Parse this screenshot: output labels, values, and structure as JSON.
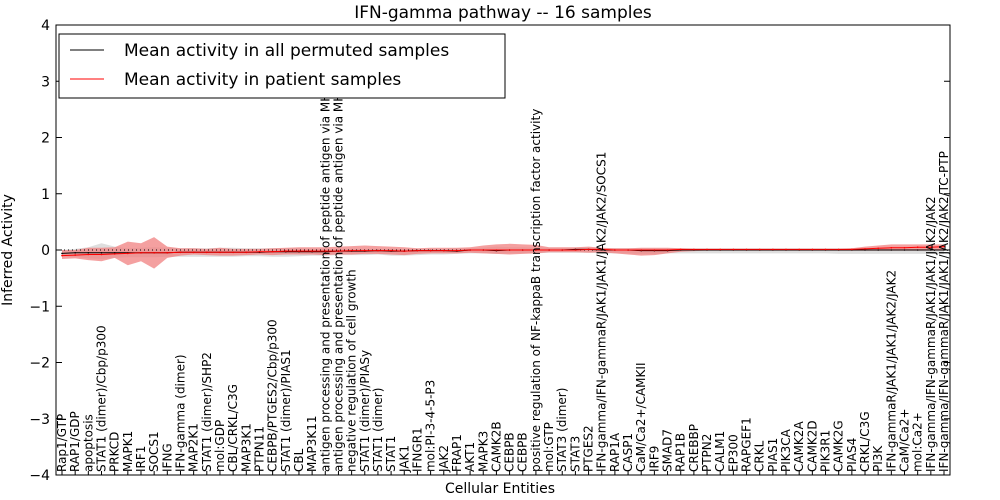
{
  "chart_data": {
    "type": "line",
    "title": "IFN-gamma pathway -- 16 samples",
    "xlabel": "Cellular Entities",
    "ylabel": "Inferred Activity",
    "ylim": [
      -4,
      4
    ],
    "yticks": [
      -4,
      -3,
      -2,
      -1,
      0,
      1,
      2,
      3,
      4
    ],
    "ytick_labels": [
      "−4",
      "−3",
      "−2",
      "−1",
      "0",
      "1",
      "2",
      "3",
      "4"
    ],
    "reference_line": 0,
    "categories": [
      "Rap1/GTP",
      "RAP1/GDP",
      "apoptosis",
      "STAT1 (dimer)/Cbp/p300",
      "PRKCD",
      "MAPK1",
      "IRF1",
      "SOCS1",
      "IFNG",
      "IFN-gamma (dimer)",
      "MAP2K1",
      "STAT1 (dimer)/SHP2",
      "mol:GDP",
      "CBL/CRKL/C3G",
      "MAP3K1",
      "PTPN11",
      "CEBPB/PTGES2/Cbp/p300",
      "STAT1 (dimer)/PIAS1",
      "CBL",
      "MAP3K11",
      "antigen processing and presentation of peptide antigen via MHC class I",
      "antigen processing and presentation of peptide antigen via MHC class II",
      "negative regulation of cell growth",
      "STAT1 (dimer)/PIASy",
      "STAT1 (dimer)",
      "STAT1",
      "JAK1",
      "IFNGR1",
      "mol:PI-3-4-5-P3",
      "JAK2",
      "FRAP1",
      "AKT1",
      "MAPK3",
      "CAMK2B",
      "CEBPB",
      "CEBPB",
      "positive regulation of NF-kappaB transcription factor activity",
      "mol:GTP",
      "STAT3 (dimer)",
      "STAT3",
      "PTGES2",
      "IFN-gamma/IFN-gammaR/JAK1/JAK1/JAK2/JAK2/SOCS1",
      "RAP1A",
      "CASP1",
      "CaM/Ca2+/CAMKII",
      "IRF9",
      "SMAD7",
      "RAP1B",
      "CREBBP",
      "PTPN2",
      "CALM1",
      "EP300",
      "RAPGEF1",
      "CRKL",
      "PIAS1",
      "PIK3CA",
      "CAMK2A",
      "CAMK2D",
      "PIK3R1",
      "CAMK2G",
      "PIAS4",
      "CRKL/C3G",
      "PI3K",
      "IFN-gammaR/JAK1/JAK1/JAK2/JAK2",
      "CaM/Ca2+",
      "mol:Ca2+",
      "IFN-gamma/IFN-gammaR/JAK1/JAK1/JAK2/JAK2",
      "IFN-gamma/IFN-gammaR/JAK1/JAK1/JAK2/JAK2/TC-PTP"
    ],
    "series": [
      {
        "name": "Mean activity in all permuted samples",
        "color": "#000000",
        "band_color": "#c8c8c8",
        "values": [
          -0.06,
          -0.05,
          -0.05,
          -0.05,
          -0.05,
          -0.05,
          -0.05,
          -0.05,
          -0.05,
          -0.04,
          -0.04,
          -0.04,
          -0.04,
          -0.04,
          -0.04,
          -0.04,
          -0.03,
          -0.03,
          -0.03,
          -0.03,
          -0.03,
          -0.02,
          -0.02,
          -0.02,
          -0.01,
          -0.02,
          -0.02,
          -0.01,
          -0.01,
          -0.01,
          -0.02,
          0.0,
          0.0,
          -0.01,
          0.0,
          0.0,
          0.0,
          0.0,
          0.0,
          0.01,
          0.01,
          0.0,
          0.0,
          0.0,
          -0.01,
          -0.01,
          -0.01,
          0.0,
          0.0,
          0.0,
          0.0,
          0.0,
          0.0,
          0.0,
          0.0,
          0.0,
          0.0,
          0.0,
          0.0,
          0.0,
          0.0,
          0.0,
          0.0,
          0.0,
          0.0,
          0.0,
          0.0,
          0.0
        ],
        "band_upper": [
          0.0,
          0.02,
          0.05,
          0.12,
          0.06,
          0.03,
          0.04,
          0.05,
          0.04,
          0.03,
          0.03,
          0.03,
          0.04,
          0.04,
          0.03,
          0.03,
          0.03,
          0.03,
          0.03,
          0.02,
          0.02,
          0.02,
          0.02,
          0.02,
          0.02,
          0.02,
          0.02,
          0.02,
          0.02,
          0.02,
          0.03,
          0.03,
          0.04,
          0.06,
          0.05,
          0.05,
          0.04,
          0.04,
          0.04,
          0.04,
          0.04,
          0.03,
          0.03,
          0.03,
          0.03,
          0.03,
          0.03,
          0.03,
          0.03,
          0.03,
          0.03,
          0.03,
          0.03,
          0.03,
          0.03,
          0.03,
          0.03,
          0.03,
          0.03,
          0.03,
          0.03,
          0.03,
          0.03,
          0.02,
          0.02,
          0.02,
          0.02,
          0.02
        ],
        "band_lower": [
          -0.12,
          -0.12,
          -0.15,
          -0.16,
          -0.14,
          -0.13,
          -0.13,
          -0.13,
          -0.12,
          -0.12,
          -0.12,
          -0.12,
          -0.12,
          -0.12,
          -0.11,
          -0.11,
          -0.12,
          -0.12,
          -0.11,
          -0.1,
          -0.1,
          -0.09,
          -0.09,
          -0.09,
          -0.08,
          -0.1,
          -0.1,
          -0.09,
          -0.08,
          -0.08,
          -0.07,
          -0.06,
          -0.06,
          -0.07,
          -0.06,
          -0.06,
          -0.06,
          -0.05,
          -0.05,
          -0.05,
          -0.05,
          -0.06,
          -0.06,
          -0.06,
          -0.07,
          -0.07,
          -0.06,
          -0.06,
          -0.06,
          -0.06,
          -0.06,
          -0.06,
          -0.06,
          -0.06,
          -0.06,
          -0.06,
          -0.06,
          -0.06,
          -0.06,
          -0.07,
          -0.07,
          -0.07,
          -0.07,
          -0.07,
          -0.07,
          -0.07,
          -0.07,
          -0.07
        ]
      },
      {
        "name": "Mean activity in patient samples",
        "color": "#ff0000",
        "band_color": "#f08080",
        "values": [
          -0.1,
          -0.09,
          -0.08,
          -0.08,
          -0.07,
          -0.06,
          -0.05,
          -0.05,
          -0.05,
          -0.04,
          -0.04,
          -0.04,
          -0.04,
          -0.04,
          -0.04,
          -0.03,
          -0.03,
          -0.02,
          -0.02,
          -0.02,
          -0.02,
          -0.02,
          -0.01,
          -0.01,
          -0.01,
          -0.01,
          -0.02,
          -0.01,
          -0.01,
          -0.01,
          -0.01,
          0.0,
          0.0,
          0.0,
          0.0,
          0.0,
          0.0,
          0.0,
          0.0,
          0.0,
          0.01,
          0.01,
          0.0,
          0.0,
          0.0,
          0.0,
          0.0,
          0.01,
          0.01,
          0.01,
          0.01,
          0.01,
          0.01,
          0.01,
          0.01,
          0.01,
          0.01,
          0.01,
          0.01,
          0.01,
          0.01,
          0.02,
          0.03,
          0.04,
          0.04,
          0.05,
          0.05,
          0.06
        ],
        "band_upper": [
          0.0,
          0.0,
          0.04,
          0.04,
          0.05,
          0.15,
          0.12,
          0.23,
          0.06,
          0.03,
          0.03,
          0.02,
          0.04,
          0.02,
          0.02,
          0.02,
          0.03,
          0.04,
          0.05,
          0.05,
          0.05,
          0.06,
          0.07,
          0.08,
          0.07,
          0.06,
          0.05,
          0.03,
          0.04,
          0.04,
          0.04,
          0.05,
          0.08,
          0.1,
          0.11,
          0.1,
          0.09,
          0.05,
          0.05,
          0.05,
          0.06,
          0.04,
          0.03,
          0.03,
          0.04,
          0.04,
          0.04,
          0.03,
          0.02,
          0.02,
          0.02,
          0.02,
          0.02,
          0.02,
          0.02,
          0.02,
          0.02,
          0.02,
          0.02,
          0.02,
          0.03,
          0.06,
          0.08,
          0.1,
          0.1,
          0.1,
          0.1,
          0.1
        ],
        "band_lower": [
          -0.16,
          -0.15,
          -0.18,
          -0.2,
          -0.14,
          -0.27,
          -0.2,
          -0.33,
          -0.14,
          -0.1,
          -0.08,
          -0.09,
          -0.1,
          -0.1,
          -0.09,
          -0.08,
          -0.09,
          -0.08,
          -0.08,
          -0.08,
          -0.09,
          -0.08,
          -0.08,
          -0.07,
          -0.07,
          -0.08,
          -0.09,
          -0.07,
          -0.06,
          -0.06,
          -0.06,
          -0.05,
          -0.06,
          -0.07,
          -0.08,
          -0.07,
          -0.06,
          -0.04,
          -0.04,
          -0.04,
          -0.05,
          -0.04,
          -0.06,
          -0.08,
          -0.1,
          -0.09,
          -0.06,
          -0.03,
          -0.02,
          -0.01,
          -0.01,
          -0.01,
          -0.01,
          -0.01,
          -0.01,
          -0.01,
          -0.01,
          -0.01,
          -0.01,
          -0.01,
          -0.01,
          -0.01,
          -0.01,
          -0.01,
          -0.01,
          -0.01,
          -0.01,
          -0.01
        ]
      }
    ],
    "legend": {
      "placement": "top-left",
      "entries": [
        "Mean activity in all permuted samples",
        "Mean activity in patient samples"
      ]
    }
  }
}
